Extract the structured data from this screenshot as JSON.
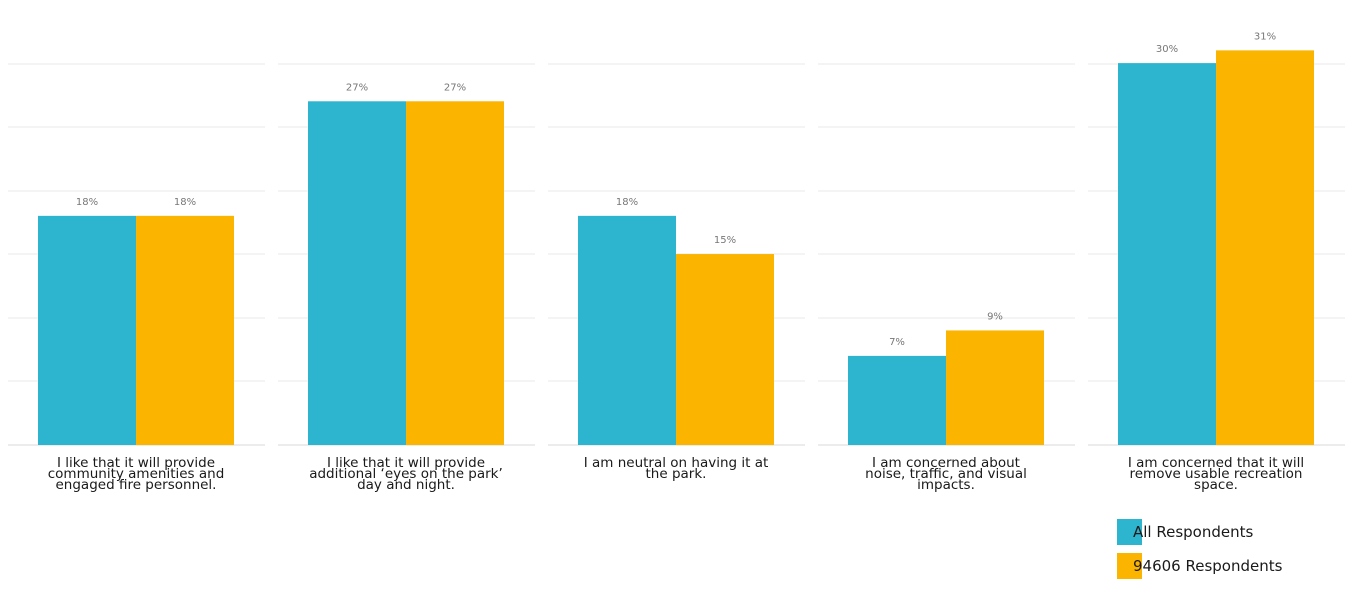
{
  "chart_data": {
    "type": "bar",
    "categories": [
      [
        "I like that it will provide",
        "community amenities and",
        "engaged fire personnel."
      ],
      [
        "I like that it will provide",
        "additional ‘eyes on the park’",
        "day and night."
      ],
      [
        "I am neutral on having it at",
        "the park."
      ],
      [
        "I am concerned about",
        "noise, traffic, and visual",
        "impacts."
      ],
      [
        "I am concerned that it will",
        "remove usable recreation",
        "space."
      ]
    ],
    "series": [
      {
        "name": "All Respondents",
        "color": "#2db4cf",
        "values": [
          18,
          27,
          18,
          7,
          30
        ],
        "labels": [
          "18%",
          "27%",
          "18%",
          "7%",
          "30%"
        ]
      },
      {
        "name": "94606 Respondents",
        "color": "#fbb400",
        "values": [
          18,
          27,
          15,
          9,
          31
        ],
        "labels": [
          "18%",
          "27%",
          "15%",
          "9%",
          "31%"
        ]
      }
    ],
    "ylim": [
      0,
      35
    ],
    "grid": true,
    "legend": "bottom-right"
  }
}
